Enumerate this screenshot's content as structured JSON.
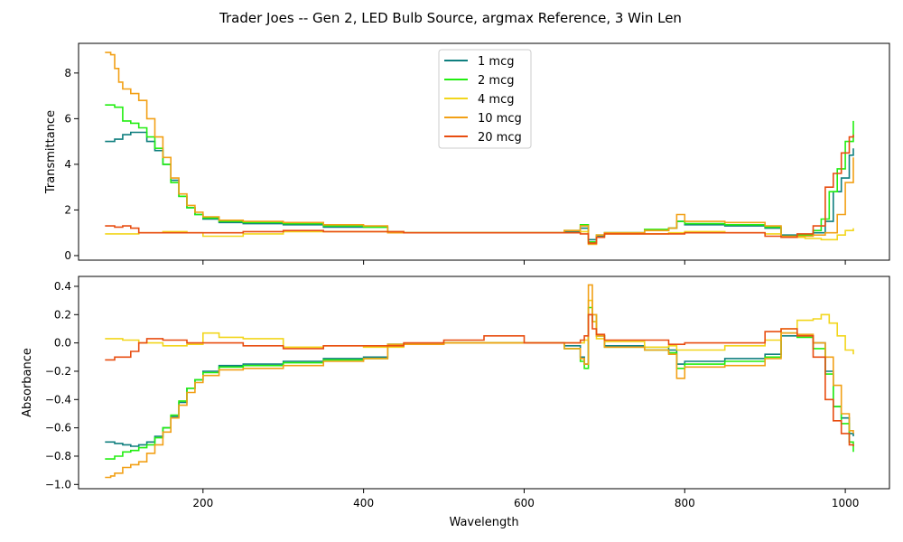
{
  "figure": {
    "title": "Trader Joes -- Gen 2, LED Bulb Source, argmax Reference, 3 Win Len"
  },
  "chart_data": [
    {
      "type": "line",
      "ylabel": "Transmittance",
      "xlabel": "",
      "xlim": [
        45,
        1055
      ],
      "ylim": [
        -0.2,
        9.3
      ],
      "xticks": [
        200,
        400,
        600,
        800,
        1000
      ],
      "show_xtick_labels": false,
      "yticks": [
        0,
        2,
        4,
        6,
        8
      ],
      "ytick_labels": [
        "0",
        "2",
        "4",
        "6",
        "8"
      ],
      "grid": false,
      "legend_placement": "top-center",
      "series": [
        {
          "name": "1 mcg",
          "color": "#0f7f7f",
          "x": [
            78,
            90,
            100,
            110,
            120,
            130,
            140,
            150,
            160,
            170,
            180,
            190,
            200,
            220,
            250,
            300,
            350,
            400,
            430,
            500,
            600,
            650,
            670,
            680,
            690,
            700,
            750,
            780,
            790,
            800,
            850,
            900,
            920,
            940,
            960,
            975,
            985,
            995,
            1005,
            1010
          ],
          "y": [
            5.0,
            5.1,
            5.3,
            5.4,
            5.4,
            5.0,
            4.6,
            4.0,
            3.3,
            2.6,
            2.1,
            1.8,
            1.6,
            1.45,
            1.4,
            1.35,
            1.25,
            1.25,
            1.0,
            1.0,
            1.0,
            1.05,
            1.2,
            0.7,
            0.85,
            1.0,
            1.1,
            1.2,
            1.5,
            1.35,
            1.3,
            1.2,
            0.9,
            0.9,
            1.0,
            1.5,
            2.8,
            3.4,
            4.4,
            4.7
          ]
        },
        {
          "name": "2 mcg",
          "color": "#22ee11",
          "x": [
            78,
            90,
            100,
            110,
            120,
            130,
            140,
            150,
            160,
            170,
            180,
            190,
            200,
            220,
            250,
            300,
            350,
            400,
            430,
            500,
            600,
            650,
            670,
            680,
            690,
            700,
            750,
            780,
            790,
            800,
            850,
            900,
            920,
            940,
            960,
            970,
            980,
            990,
            1000,
            1010
          ],
          "y": [
            6.6,
            6.5,
            5.9,
            5.8,
            5.6,
            5.2,
            4.7,
            4.0,
            3.2,
            2.6,
            2.1,
            1.8,
            1.65,
            1.5,
            1.45,
            1.4,
            1.3,
            1.25,
            1.0,
            1.0,
            1.0,
            1.1,
            1.35,
            0.6,
            0.9,
            1.0,
            1.15,
            1.2,
            1.5,
            1.4,
            1.35,
            1.25,
            0.85,
            0.9,
            1.1,
            1.6,
            2.8,
            3.8,
            5.0,
            5.9
          ]
        },
        {
          "name": "4 mcg",
          "color": "#f2d61c",
          "x": [
            78,
            100,
            120,
            150,
            180,
            200,
            250,
            300,
            400,
            450,
            500,
            600,
            650,
            670,
            680,
            690,
            700,
            780,
            800,
            850,
            900,
            920,
            950,
            970,
            990,
            1000,
            1010
          ],
          "y": [
            0.95,
            0.95,
            1.0,
            1.05,
            1.0,
            0.85,
            0.95,
            1.05,
            1.05,
            1.0,
            1.0,
            1.0,
            1.0,
            1.05,
            0.5,
            0.8,
            0.95,
            1.0,
            1.05,
            1.0,
            0.95,
            0.8,
            0.75,
            0.7,
            0.9,
            1.1,
            1.2
          ]
        },
        {
          "name": "10 mcg",
          "color": "#f2a016",
          "x": [
            78,
            85,
            90,
            95,
            100,
            110,
            120,
            130,
            140,
            150,
            160,
            170,
            180,
            190,
            200,
            220,
            250,
            300,
            350,
            400,
            430,
            500,
            600,
            650,
            670,
            680,
            690,
            700,
            750,
            780,
            790,
            800,
            850,
            900,
            920,
            940,
            960,
            975,
            990,
            1000,
            1010
          ],
          "y": [
            8.9,
            8.8,
            8.2,
            7.6,
            7.3,
            7.1,
            6.8,
            6.0,
            5.2,
            4.3,
            3.4,
            2.7,
            2.2,
            1.9,
            1.7,
            1.55,
            1.5,
            1.45,
            1.35,
            1.3,
            1.0,
            1.0,
            1.0,
            1.1,
            1.3,
            0.5,
            0.9,
            1.0,
            1.1,
            1.2,
            1.8,
            1.5,
            1.45,
            1.3,
            0.85,
            0.85,
            0.9,
            1.0,
            1.8,
            3.2,
            4.3
          ]
        },
        {
          "name": "20 mcg",
          "color": "#e84d10",
          "x": [
            78,
            90,
            100,
            110,
            120,
            130,
            150,
            180,
            200,
            250,
            300,
            350,
            400,
            450,
            500,
            600,
            650,
            670,
            680,
            690,
            700,
            750,
            800,
            850,
            900,
            920,
            940,
            960,
            975,
            985,
            995,
            1005,
            1010
          ],
          "y": [
            1.3,
            1.25,
            1.3,
            1.2,
            1.0,
            1.0,
            1.0,
            1.0,
            1.0,
            1.05,
            1.1,
            1.05,
            1.05,
            1.0,
            1.0,
            1.0,
            1.0,
            0.95,
            0.55,
            0.8,
            0.95,
            0.95,
            1.0,
            1.0,
            0.85,
            0.8,
            0.95,
            1.3,
            3.0,
            3.6,
            4.5,
            5.2,
            5.3
          ]
        }
      ]
    },
    {
      "type": "line",
      "ylabel": "Absorbance",
      "xlabel": "Wavelength",
      "xlim": [
        45,
        1055
      ],
      "ylim": [
        -1.03,
        0.47
      ],
      "xticks": [
        200,
        400,
        600,
        800,
        1000
      ],
      "xtick_labels": [
        "200",
        "400",
        "600",
        "800",
        "1000"
      ],
      "show_xtick_labels": true,
      "yticks": [
        -1.0,
        -0.8,
        -0.6,
        -0.4,
        -0.2,
        0.0,
        0.2,
        0.4
      ],
      "ytick_labels": [
        "−1.0",
        "−0.8",
        "−0.6",
        "−0.4",
        "−0.2",
        "0.0",
        "0.2",
        "0.4"
      ],
      "grid": false,
      "series": [
        {
          "name": "1 mcg",
          "color": "#0f7f7f",
          "x": [
            78,
            90,
            100,
            110,
            120,
            130,
            140,
            150,
            160,
            170,
            180,
            190,
            200,
            220,
            250,
            300,
            350,
            400,
            430,
            500,
            600,
            650,
            670,
            675,
            680,
            685,
            690,
            700,
            750,
            780,
            790,
            800,
            850,
            900,
            920,
            940,
            960,
            975,
            985,
            995,
            1005,
            1010
          ],
          "y": [
            -0.7,
            -0.71,
            -0.72,
            -0.73,
            -0.72,
            -0.7,
            -0.66,
            -0.6,
            -0.52,
            -0.42,
            -0.32,
            -0.26,
            -0.2,
            -0.16,
            -0.15,
            -0.13,
            -0.11,
            -0.1,
            -0.01,
            0.0,
            0.0,
            -0.02,
            -0.1,
            -0.15,
            0.2,
            0.15,
            0.05,
            -0.02,
            -0.03,
            -0.05,
            -0.15,
            -0.13,
            -0.11,
            -0.08,
            0.05,
            0.05,
            0.0,
            -0.2,
            -0.45,
            -0.53,
            -0.64,
            -0.66
          ]
        },
        {
          "name": "2 mcg",
          "color": "#22ee11",
          "x": [
            78,
            90,
            100,
            110,
            120,
            130,
            140,
            150,
            160,
            170,
            180,
            190,
            200,
            220,
            250,
            300,
            350,
            400,
            430,
            500,
            600,
            650,
            670,
            675,
            680,
            685,
            690,
            700,
            750,
            780,
            790,
            800,
            850,
            900,
            920,
            940,
            960,
            975,
            985,
            995,
            1005,
            1010
          ],
          "y": [
            -0.82,
            -0.8,
            -0.77,
            -0.76,
            -0.74,
            -0.72,
            -0.67,
            -0.6,
            -0.51,
            -0.41,
            -0.32,
            -0.26,
            -0.21,
            -0.17,
            -0.16,
            -0.14,
            -0.12,
            -0.11,
            -0.01,
            0.0,
            0.0,
            -0.04,
            -0.13,
            -0.18,
            0.25,
            0.2,
            0.05,
            -0.03,
            -0.05,
            -0.07,
            -0.18,
            -0.15,
            -0.13,
            -0.1,
            0.07,
            0.04,
            -0.04,
            -0.22,
            -0.45,
            -0.57,
            -0.7,
            -0.77
          ]
        },
        {
          "name": "4 mcg",
          "color": "#f2d61c",
          "x": [
            78,
            100,
            120,
            150,
            180,
            200,
            220,
            250,
            300,
            350,
            400,
            450,
            500,
            550,
            600,
            650,
            670,
            675,
            680,
            685,
            690,
            700,
            750,
            780,
            790,
            800,
            850,
            900,
            920,
            940,
            960,
            970,
            980,
            990,
            1000,
            1010
          ],
          "y": [
            0.03,
            0.02,
            0.0,
            -0.02,
            -0.01,
            0.07,
            0.04,
            0.03,
            -0.03,
            -0.02,
            -0.03,
            -0.01,
            0.0,
            0.0,
            0.0,
            0.0,
            0.0,
            0.02,
            0.3,
            0.15,
            0.03,
            0.01,
            -0.03,
            -0.02,
            -0.05,
            -0.05,
            -0.02,
            0.02,
            0.1,
            0.16,
            0.17,
            0.2,
            0.14,
            0.05,
            -0.05,
            -0.08
          ]
        },
        {
          "name": "10 mcg",
          "color": "#f2a016",
          "x": [
            78,
            85,
            90,
            100,
            110,
            120,
            130,
            140,
            150,
            160,
            170,
            180,
            190,
            200,
            220,
            250,
            300,
            350,
            400,
            430,
            500,
            600,
            650,
            670,
            675,
            680,
            685,
            690,
            700,
            750,
            780,
            790,
            800,
            850,
            900,
            920,
            940,
            960,
            975,
            985,
            995,
            1005,
            1010
          ],
          "y": [
            -0.95,
            -0.94,
            -0.92,
            -0.88,
            -0.86,
            -0.84,
            -0.78,
            -0.72,
            -0.63,
            -0.53,
            -0.44,
            -0.35,
            -0.28,
            -0.23,
            -0.19,
            -0.18,
            -0.16,
            -0.13,
            -0.11,
            -0.01,
            0.0,
            0.0,
            -0.04,
            -0.11,
            -0.15,
            0.41,
            0.2,
            0.05,
            -0.03,
            -0.05,
            -0.08,
            -0.25,
            -0.17,
            -0.16,
            -0.11,
            0.07,
            0.06,
            0.0,
            -0.1,
            -0.3,
            -0.5,
            -0.62,
            -0.64
          ]
        },
        {
          "name": "20 mcg",
          "color": "#e84d10",
          "x": [
            78,
            90,
            100,
            110,
            120,
            130,
            150,
            180,
            200,
            250,
            300,
            350,
            400,
            450,
            500,
            550,
            600,
            650,
            670,
            675,
            680,
            685,
            690,
            700,
            750,
            780,
            800,
            850,
            900,
            920,
            940,
            960,
            975,
            985,
            995,
            1005,
            1010
          ],
          "y": [
            -0.12,
            -0.1,
            -0.1,
            -0.06,
            0.0,
            0.03,
            0.02,
            0.0,
            0.0,
            -0.02,
            -0.04,
            -0.02,
            -0.02,
            0.0,
            0.02,
            0.05,
            0.0,
            0.0,
            0.02,
            0.05,
            0.2,
            0.1,
            0.06,
            0.02,
            0.02,
            -0.01,
            0.0,
            0.0,
            0.08,
            0.1,
            0.05,
            -0.1,
            -0.4,
            -0.55,
            -0.64,
            -0.72,
            -0.73
          ]
        }
      ]
    }
  ]
}
